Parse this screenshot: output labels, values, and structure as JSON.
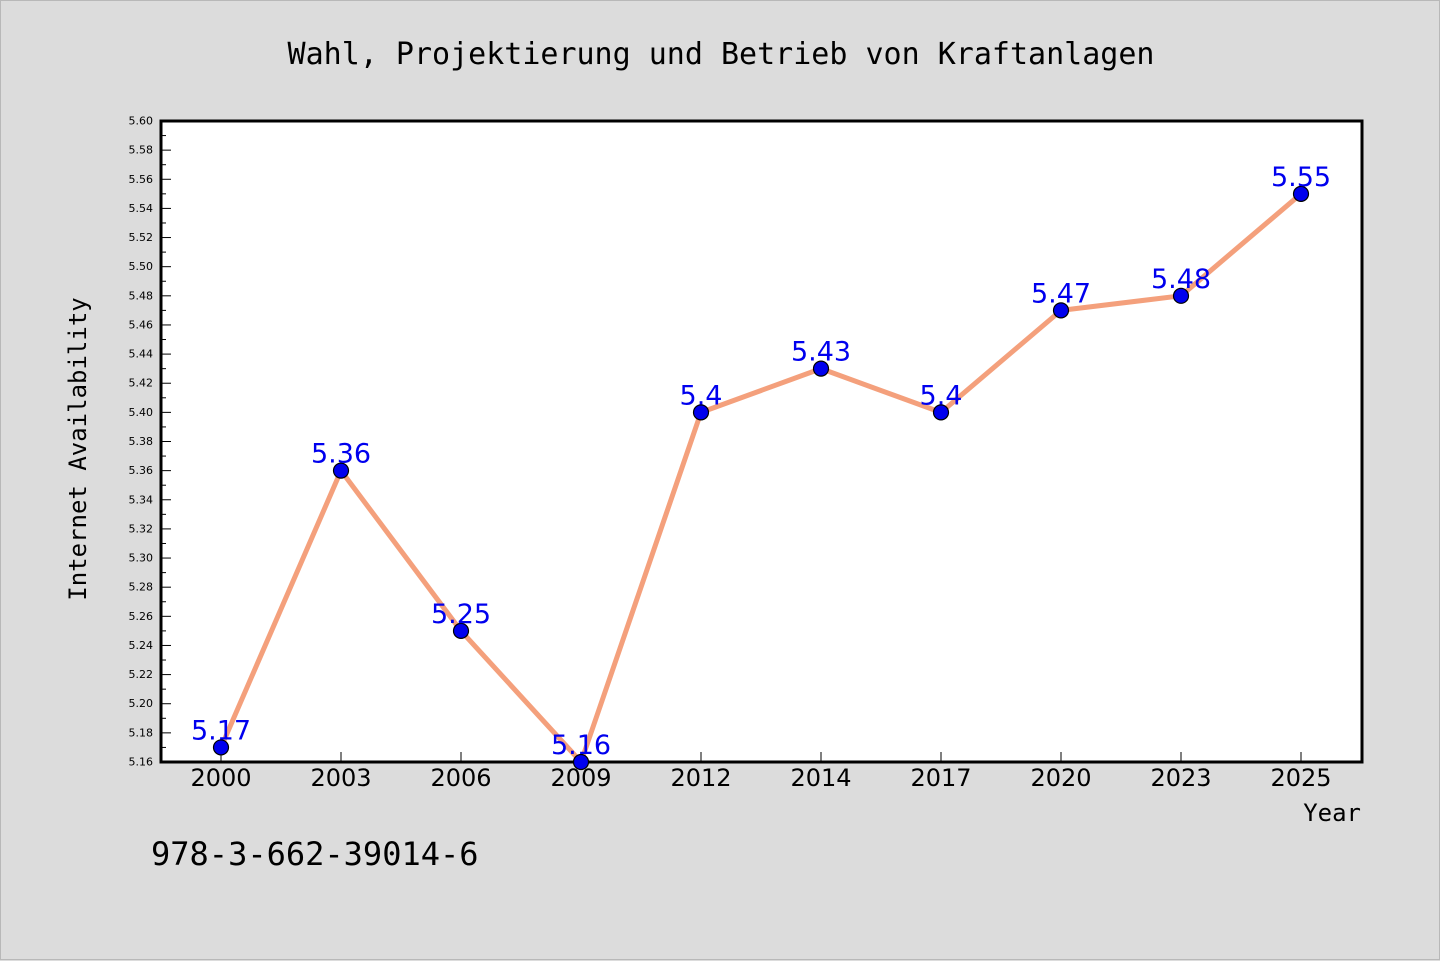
{
  "chart_data": {
    "type": "line",
    "title": "Wahl, Projektierung und Betrieb von Kraftanlagen",
    "xlabel": "Year",
    "ylabel": "Internet Availability",
    "categories": [
      "2000",
      "2003",
      "2006",
      "2009",
      "2012",
      "2014",
      "2017",
      "2020",
      "2023",
      "2025"
    ],
    "series": [
      {
        "values": [
          5.17,
          5.36,
          5.25,
          5.16,
          5.4,
          5.43,
          5.4,
          5.47,
          5.48,
          5.55
        ],
        "data_labels": [
          "5.17",
          "5.36",
          "5.25",
          "5.16",
          "5.4",
          "5.43",
          "5.4",
          "5.47",
          "5.48",
          "5.55"
        ],
        "line_color": "#f4a07c",
        "marker_color": "#0000ee",
        "label_color": "#0000ee"
      }
    ],
    "ylim": [
      5.16,
      5.6
    ],
    "y_ticks": [
      "5.16",
      "5.18",
      "5.20",
      "5.22",
      "5.24",
      "5.26",
      "5.28",
      "5.30",
      "5.32",
      "5.34",
      "5.36",
      "5.38",
      "5.40",
      "5.42",
      "5.44",
      "5.46",
      "5.48",
      "5.50",
      "5.52",
      "5.54",
      "5.56",
      "5.58",
      "5.60"
    ],
    "grid": false,
    "legend": "none"
  },
  "footer": {
    "isbn": "978-3-662-39014-6"
  },
  "colors": {
    "background": "#dcdcdc",
    "plot_area": "#ffffff",
    "axis": "#000000"
  }
}
